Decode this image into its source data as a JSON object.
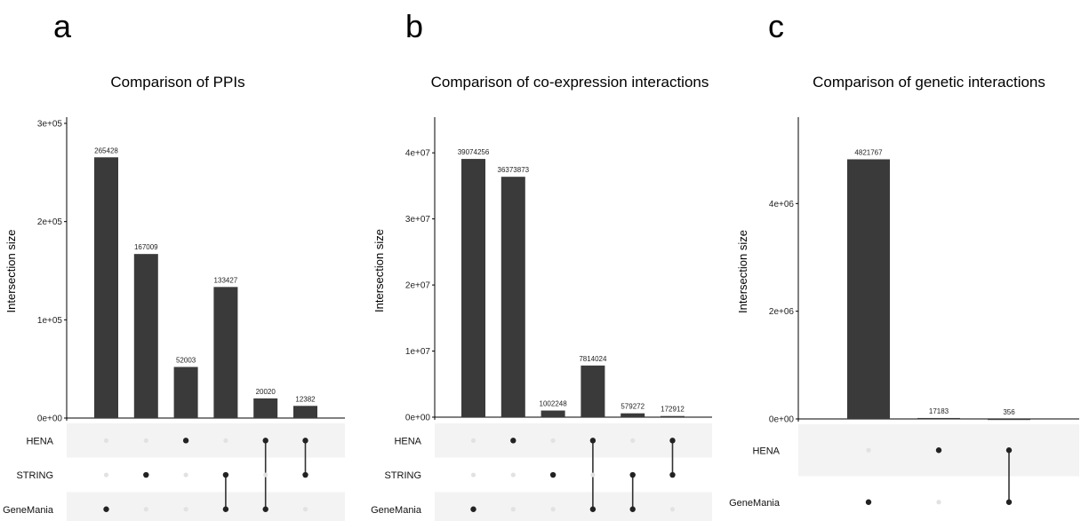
{
  "chart_data": [
    {
      "type": "bar",
      "panel_letter": "a",
      "title": "Comparison of PPIs",
      "ylabel": "Intersection size",
      "ylim": [
        0,
        300000
      ],
      "yticks": [
        "0e+00",
        "1e+05",
        "2e+05",
        "3e+05"
      ],
      "sets": [
        "HENA",
        "STRING",
        "GeneMania"
      ],
      "intersections": [
        {
          "value": 265428,
          "label": "265428",
          "members": [
            "GeneMania"
          ]
        },
        {
          "value": 167009,
          "label": "167009",
          "members": [
            "STRING"
          ]
        },
        {
          "value": 52003,
          "label": "52003",
          "members": [
            "HENA"
          ]
        },
        {
          "value": 133427,
          "label": "133427",
          "members": [
            "STRING",
            "GeneMania"
          ]
        },
        {
          "value": 20020,
          "label": "20020",
          "members": [
            "HENA",
            "GeneMania"
          ]
        },
        {
          "value": 12382,
          "label": "12382",
          "members": [
            "HENA",
            "STRING"
          ]
        }
      ]
    },
    {
      "type": "bar",
      "panel_letter": "b",
      "title": "Comparison of co-expression interactions",
      "ylabel": "Intersection size",
      "ylim": [
        0,
        44000000
      ],
      "yticks": [
        "0e+00",
        "1e+07",
        "2e+07",
        "3e+07",
        "4e+07"
      ],
      "sets": [
        "HENA",
        "STRING",
        "GeneMania"
      ],
      "intersections": [
        {
          "value": 39074256,
          "label": "39074256",
          "members": [
            "GeneMania"
          ]
        },
        {
          "value": 36373873,
          "label": "36373873",
          "members": [
            "HENA"
          ]
        },
        {
          "value": 1002248,
          "label": "1002248",
          "members": [
            "STRING"
          ]
        },
        {
          "value": 7814024,
          "label": "7814024",
          "members": [
            "HENA",
            "GeneMania"
          ]
        },
        {
          "value": 579272,
          "label": "579272",
          "members": [
            "STRING",
            "GeneMania"
          ]
        },
        {
          "value": 172912,
          "label": "172912",
          "members": [
            "HENA",
            "STRING"
          ]
        }
      ]
    },
    {
      "type": "bar",
      "panel_letter": "c",
      "title": "Comparison of genetic interactions",
      "ylabel": "Intersection size",
      "ylim": [
        0,
        5400000
      ],
      "yticks": [
        "0e+00",
        "2e+06",
        "4e+06"
      ],
      "sets": [
        "HENA",
        "GeneMania"
      ],
      "intersections": [
        {
          "value": 4821767,
          "label": "4821767",
          "members": [
            "GeneMania"
          ]
        },
        {
          "value": 17183,
          "label": "17183",
          "members": [
            "HENA"
          ]
        },
        {
          "value": 356,
          "label": "356",
          "members": [
            "HENA",
            "GeneMania"
          ]
        }
      ]
    }
  ]
}
